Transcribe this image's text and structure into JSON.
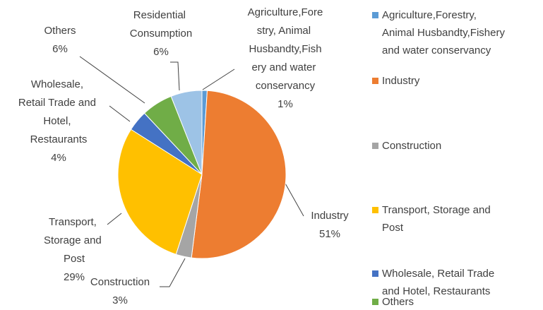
{
  "chart_data": {
    "type": "pie",
    "categories": [
      "Agriculture,Forestry, Animal Husbandty,Fishery and water conservancy",
      "Industry",
      "Construction",
      "Transport, Storage and Post",
      "Wholesale, Retail Trade and Hotel, Restaurants",
      "Others",
      "Residential Consumption"
    ],
    "values": [
      1,
      51,
      3,
      29,
      4,
      6,
      6
    ],
    "value_labels": [
      "1%",
      "51%",
      "3%",
      "29%",
      "4%",
      "6%",
      "6%"
    ],
    "colors": [
      "#5b9bd5",
      "#ed7d31",
      "#a5a5a5",
      "#ffc000",
      "#4472c4",
      "#70ad47",
      "#9dc3e6"
    ],
    "legend": "right"
  }
}
